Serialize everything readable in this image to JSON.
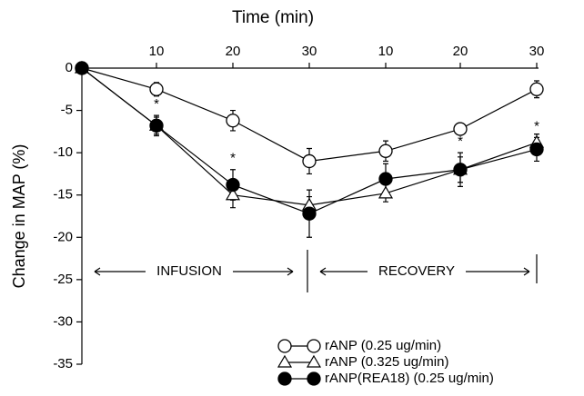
{
  "chart_data": {
    "type": "line",
    "title": "Time (min)",
    "y_label": "Change in MAP (%)",
    "categories": [
      null,
      "10",
      "20",
      "30",
      "10",
      "20",
      "30"
    ],
    "phases": [
      "INFUSION",
      "RECOVERY"
    ],
    "ylim": [
      -35,
      0
    ],
    "yticks": [
      0,
      -5,
      -10,
      -15,
      -20,
      -25,
      -30,
      -35
    ],
    "grid": false,
    "legend": "lower right",
    "significance": [
      null,
      "*",
      "*",
      null,
      null,
      "*",
      "*"
    ],
    "series": [
      {
        "name": "rANP (0.25 ug/min)",
        "color": "#000000",
        "marker": "circle-open",
        "values": [
          0,
          -2.5,
          -6.2,
          -11,
          -9.8,
          -7.2,
          -2.5
        ],
        "errors": [
          0,
          0.8,
          1.2,
          1.5,
          1.2,
          0.3,
          1
        ]
      },
      {
        "name": "rANP (0.325 ug/min)",
        "color": "#000000",
        "marker": "triangle-open",
        "values": [
          0,
          -6.8,
          -15,
          -16.2,
          -14.8,
          -12,
          -8.8
        ],
        "errors": [
          0,
          1,
          1.5,
          1,
          1,
          1.5,
          1
        ]
      },
      {
        "name": "rANP(REA18) (0.25 ug/min)",
        "color": "#000000",
        "marker": "circle-filled",
        "values": [
          0,
          -6.8,
          -13.8,
          -17.2,
          -13.1,
          -12,
          -9.6
        ],
        "errors": [
          0,
          1.2,
          1.8,
          2.8,
          1.8,
          2,
          1.4
        ]
      }
    ]
  }
}
